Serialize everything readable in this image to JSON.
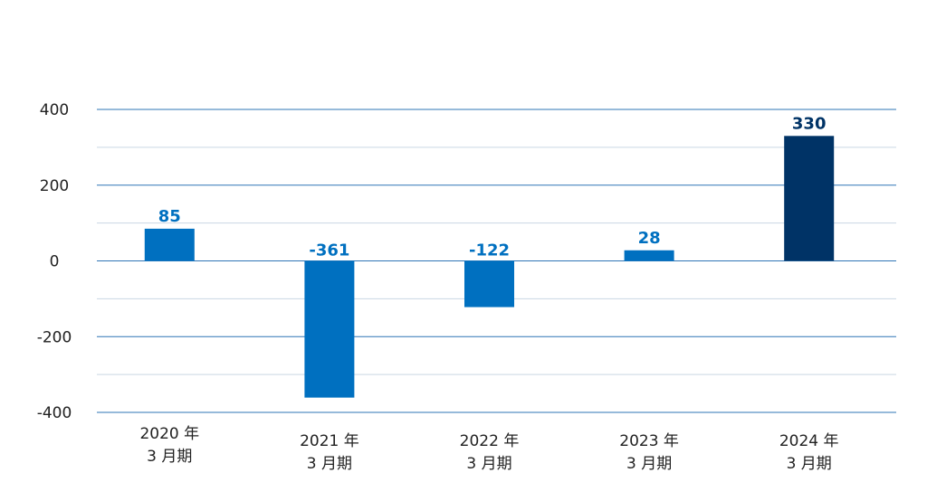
{
  "chart_data": {
    "type": "bar",
    "categories": [
      [
        "2020 年",
        "3 月期"
      ],
      [
        "2021 年",
        "3 月期"
      ],
      [
        "2022 年",
        "3 月期"
      ],
      [
        "2023 年",
        "3 月期"
      ],
      [
        "2024 年",
        "3 月期"
      ]
    ],
    "values": [
      85,
      -361,
      -122,
      28,
      330
    ],
    "data_labels": [
      "85",
      "-361",
      "-122",
      "28",
      "330"
    ],
    "ylim": [
      -400,
      400
    ],
    "y_ticks": [
      "400",
      "200",
      "0",
      "-200",
      "-400"
    ],
    "y_tick_values": [
      400,
      200,
      0,
      -200,
      -400
    ],
    "grid": true,
    "legend": "none",
    "colors": {
      "bar_default": "#0070c0",
      "bar_highlight": "#003366",
      "label_default": "#0070c0",
      "label_highlight": "#003366",
      "major_grid": "#2e75b6",
      "minor_grid": "#c9d6e3"
    },
    "highlight_index": 4
  }
}
